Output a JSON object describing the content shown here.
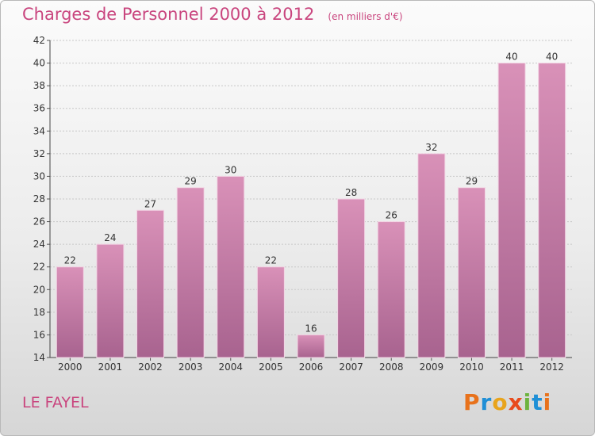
{
  "chart_data": {
    "type": "bar",
    "title": "Charges de Personnel 2000 à 2012",
    "subtitle": "(en milliers d'€)",
    "categories": [
      "2000",
      "2001",
      "2002",
      "2003",
      "2004",
      "2005",
      "2006",
      "2007",
      "2008",
      "2009",
      "2010",
      "2011",
      "2012"
    ],
    "values": [
      22,
      24,
      27,
      29,
      30,
      22,
      16,
      28,
      26,
      32,
      29,
      40,
      40
    ],
    "ylim": [
      14,
      42
    ],
    "yticks": [
      14,
      16,
      18,
      20,
      22,
      24,
      26,
      28,
      30,
      32,
      34,
      36,
      38,
      40,
      42
    ],
    "grid": true,
    "bar_color": "#d991b8",
    "bar_color_dark": "#a8638f",
    "text_color": "#c9457e"
  },
  "commune": "LE FAYEL",
  "logo": {
    "letters": [
      "P",
      "r",
      "o",
      "x",
      "i",
      "t",
      "i"
    ],
    "colors": [
      "#e8721c",
      "#1f8fd6",
      "#e8a41c",
      "#e84a1c",
      "#6db33f",
      "#1f8fd6",
      "#e8721c"
    ]
  }
}
